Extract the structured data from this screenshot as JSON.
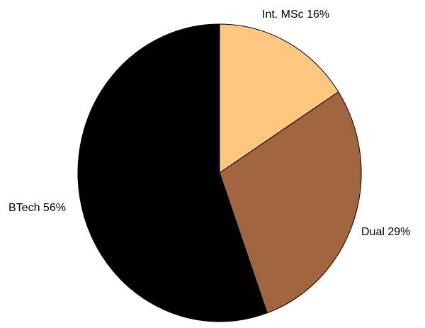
{
  "chart_data": {
    "type": "pie",
    "title": "",
    "slices": [
      {
        "category": "Int. MSc",
        "value": 16,
        "label": "Int. MSc 16%",
        "color": "#ffc680"
      },
      {
        "category": "Dual",
        "value": 29,
        "label": "Dual 29%",
        "color": "#a0663f"
      },
      {
        "category": "BTech",
        "value": 56,
        "label": "BTech 56%",
        "color": "#000000"
      }
    ],
    "start_angle_deg": 0,
    "direction": "clockwise",
    "legend": "none",
    "label_placement": "outside"
  }
}
